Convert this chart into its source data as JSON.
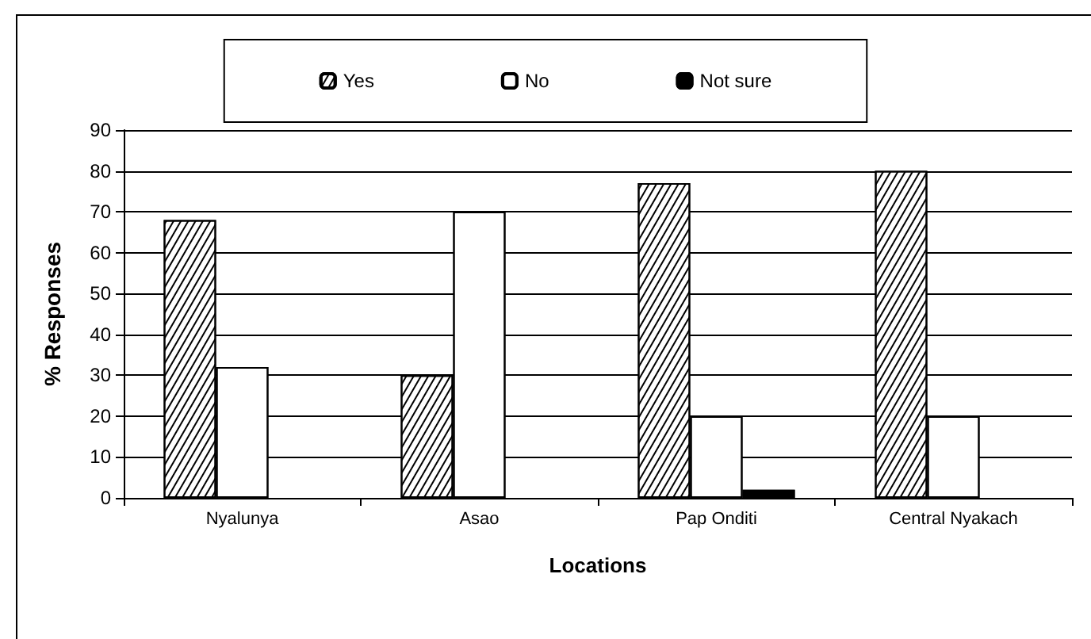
{
  "chart_data": {
    "type": "bar",
    "xlabel": "Locations",
    "ylabel": "% Responses",
    "categories": [
      "Nyalunya",
      "Asao",
      "Pap Onditi",
      "Central Nyakach"
    ],
    "series": [
      {
        "name": "Yes",
        "color": "#ffffff",
        "values": [
          68,
          30,
          77,
          80
        ]
      },
      {
        "name": "No",
        "color": "#ffffff",
        "values": [
          32,
          70,
          20,
          20
        ]
      },
      {
        "name": "Not sure",
        "color": "#000000",
        "values": [
          null,
          null,
          2,
          null
        ]
      }
    ],
    "ylim": [
      0,
      90
    ],
    "yticks": [
      0,
      10,
      20,
      30,
      40,
      50,
      60,
      70,
      80,
      90
    ],
    "grid": "y",
    "legend": "top"
  }
}
